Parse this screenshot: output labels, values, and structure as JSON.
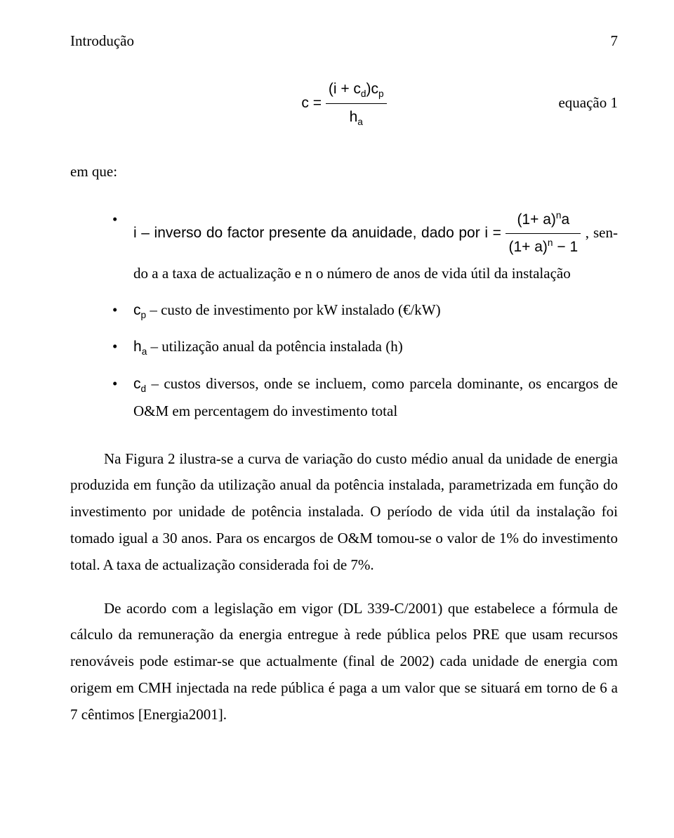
{
  "header": {
    "title": "Introdução",
    "page_number": "7"
  },
  "equation1": {
    "lhs": "c =",
    "num_left": "(i + c",
    "num_d": "d",
    "num_mid": ")c",
    "num_p": "p",
    "den_h": "h",
    "den_a": "a",
    "label": "equação 1"
  },
  "em_que": "em que:",
  "bullets": {
    "b1": {
      "pre": "i – inverso do factor presente da anuidade, dado por ",
      "i_eq": "i =",
      "num1_open": "(1+ a)",
      "num1_sup": "n",
      "num1_tail": "a",
      "den1_open": "(1+ a)",
      "den1_sup": "n",
      "den1_tail": " − 1",
      "post1": ", sen-",
      "cont": "do a a taxa de actualização e n o número de anos de vida útil da instalação"
    },
    "b2": {
      "pre_c": "c",
      "pre_p": "p",
      "rest": " – custo de investimento por kW instalado (€/kW)"
    },
    "b3": {
      "pre_h": "h",
      "pre_a": "a",
      "rest": " – utilização anual da potência instalada (h)"
    },
    "b4": {
      "pre_c": "c",
      "pre_d": "d",
      "rest": " – custos diversos, onde se incluem, como parcela dominante, os encargos de O&M em percentagem do investimento total"
    }
  },
  "para1": "Na Figura 2 ilustra-se a curva de variação do custo médio anual da unidade de energia produzida em função da utilização anual da potência instalada, parametrizada em função do investimento por unidade de potência instalada. O período de vida útil da instalação foi tomado igual a 30 anos. Para os encargos de O&M tomou-se o valor de 1% do investimento total. A taxa de actualização considerada foi de 7%.",
  "para2": "De acordo com a legislação em vigor (DL 339-C/2001) que estabelece a fórmula de cálculo da remuneração da energia entregue à rede pública pelos PRE que usam recursos renováveis pode estimar-se que actualmente (final de 2002) cada unidade de energia com origem em CMH injectada na rede pública é paga a um valor que se situará em torno de 6 a 7 cêntimos [Energia2001]."
}
